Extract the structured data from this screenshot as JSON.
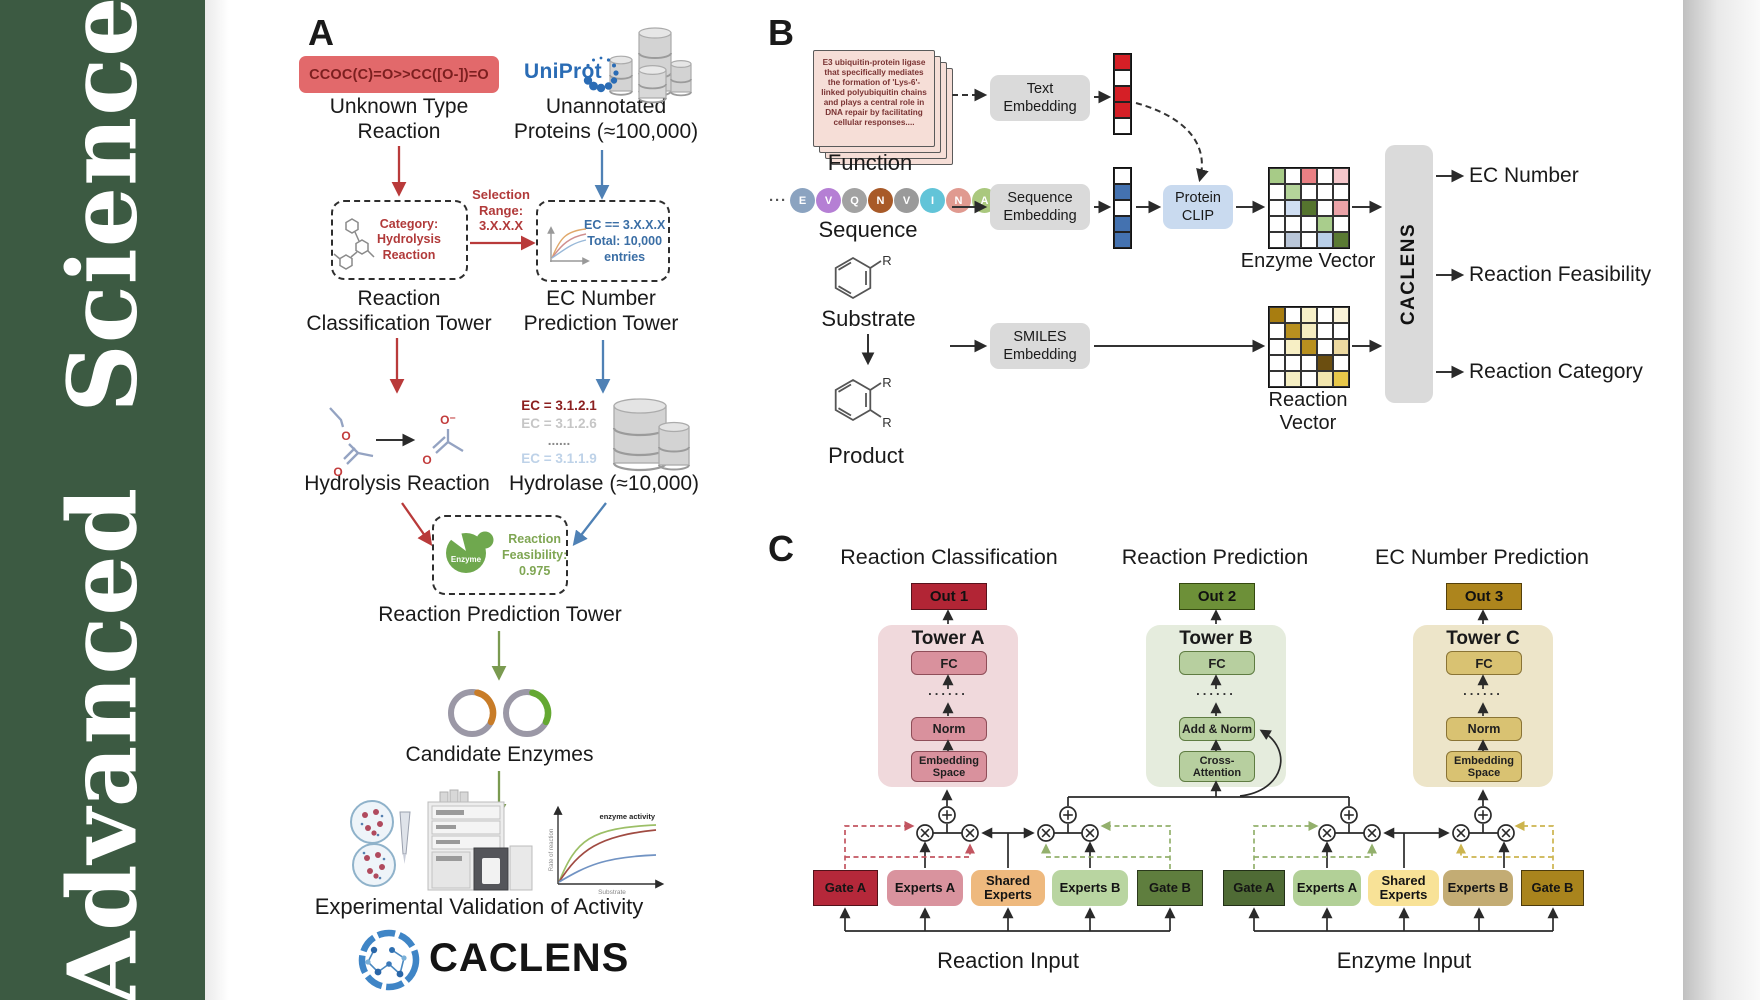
{
  "journal": {
    "name": "Advanced Science"
  },
  "panelA": {
    "label": "A",
    "smiles": "CCOC(C)=O>>CC([O-])=O",
    "unknown_label": "Unknown Type\nReaction",
    "uniprot": "UniProt",
    "unannotated_label": "Unannotated\nProteins (≈100,000)",
    "classification_box": "Category:\nHydrolysis\nReaction",
    "selection_label": "Selection\nRange:\n3.X.X.X",
    "ec_box": "EC == 3.X.X.X\nTotal: 10,000\nentries",
    "rc_tower_label": "Reaction\nClassification Tower",
    "ec_tower_label": "EC Number\nPrediction Tower",
    "ec_list": [
      "EC = 3.1.2.1",
      "EC = 3.1.2.6",
      "......",
      "EC = 3.1.1.9"
    ],
    "hydrolysis_label": "Hydrolysis Reaction",
    "hydrolase_label": "Hydrolase (≈10,000)",
    "enzyme_icon_label": "Enzyme",
    "feasibility_box": "Reaction\nFeasibility:\n0.975",
    "rpt_label": "Reaction Prediction Tower",
    "candidate_label": "Candidate Enzymes",
    "activity_chart": {
      "title": "enzyme activity",
      "ylabel": "Rate of reaction",
      "xlabel": "Substrate"
    },
    "validation_label": "Experimental Validation of Activity",
    "brand": "CACLENS",
    "atoms": {
      "o": "O",
      "o_minus": "O⁻"
    }
  },
  "panelB": {
    "label": "B",
    "function_card": "E3 ubiquitin-protein ligase that specifically mediates the formation of 'Lys-6'-linked polyubiquitin chains and plays a central role in DNA repair by facilitating cellular responses....",
    "function_label": "Function",
    "ellipsis": "···",
    "sequence": {
      "letters": [
        "E",
        "V",
        "Q",
        "N",
        "V",
        "I",
        "N",
        "A"
      ],
      "colors": [
        "#8ba3c0",
        "#b57fd4",
        "#a2a2a2",
        "#a85a28",
        "#9a9a9a",
        "#62c4d8",
        "#e09a90",
        "#aac87e"
      ]
    },
    "sequence_label": "Sequence",
    "substrate_label": "Substrate",
    "product_label": "Product",
    "r_group": "R",
    "text_embedding": "Text\nEmbedding",
    "sequence_embedding": "Sequence\nEmbedding",
    "smiles_embedding": "SMILES\nEmbedding",
    "protein_clip": "Protein\nCLIP",
    "text_vector": [
      "#d51f26",
      "#ffffff",
      "#d51f26",
      "#d51f26",
      "#ffffff"
    ],
    "seq_vector": [
      "#ffffff",
      "#4472b0",
      "#ffffff",
      "#4472b0",
      "#4472b0"
    ],
    "enzyme_matrix": [
      "#a7cb87",
      "#ffffff",
      "#e98084",
      "#ffffff",
      "#f5c6ca",
      "#ffffff",
      "#b4d49a",
      "#ffffff",
      "#ffffff",
      "#ffffff",
      "#ffffff",
      "#cfdef2",
      "#55742e",
      "#ffffff",
      "#eba3a8",
      "#ffffff",
      "#ffffff",
      "#ffffff",
      "#a9cd8c",
      "#ffffff",
      "#ffffff",
      "#b9c6d8",
      "#ffffff",
      "#b9cfe8",
      "#5a7a33"
    ],
    "reaction_matrix": [
      "#a87d10",
      "#ffffff",
      "#f7f0c8",
      "#ffffff",
      "#faf3d8",
      "#ffffff",
      "#b8901f",
      "#f5ecc0",
      "#ffffff",
      "#ffffff",
      "#ffffff",
      "#f7efc5",
      "#b8901f",
      "#ffffff",
      "#ecd9a0",
      "#ffffff",
      "#ffffff",
      "#ffffff",
      "#6b4e10",
      "#ffffff",
      "#ffffff",
      "#f5eec2",
      "#ffffff",
      "#f2e6ae",
      "#e8c84a"
    ],
    "enzyme_vector_label": "Enzyme Vector",
    "reaction_vector_label": "Reaction Vector",
    "caclens": "CACLENS",
    "outputs": [
      "EC Number",
      "Reaction Feasibility",
      "Reaction Category"
    ]
  },
  "panelC": {
    "label": "C",
    "columns": [
      {
        "title": "Reaction Classification",
        "out": "Out 1",
        "tower": "Tower A",
        "fc": "FC",
        "dots": "......",
        "mid": "Norm",
        "bottom": "Embedding\nSpace"
      },
      {
        "title": "Reaction Prediction",
        "out": "Out 2",
        "tower": "Tower B",
        "fc": "FC",
        "dots": "......",
        "mid": "Add & Norm",
        "bottom": "Cross-\nAttention"
      },
      {
        "title": "EC Number Prediction",
        "out": "Out 3",
        "tower": "Tower C",
        "fc": "FC",
        "dots": "......",
        "mid": "Norm",
        "bottom": "Embedding\nSpace"
      }
    ],
    "moe_left": {
      "gate_a": "Gate A",
      "experts_a": "Experts A",
      "shared": "Shared\nExperts",
      "experts_b": "Experts B",
      "gate_b": "Gate B",
      "input": "Reaction Input"
    },
    "moe_right": {
      "gate_a": "Gate A",
      "experts_a": "Experts A",
      "shared": "Shared\nExperts",
      "experts_b": "Experts B",
      "gate_b": "Gate B",
      "input": "Enzyme Input"
    }
  }
}
